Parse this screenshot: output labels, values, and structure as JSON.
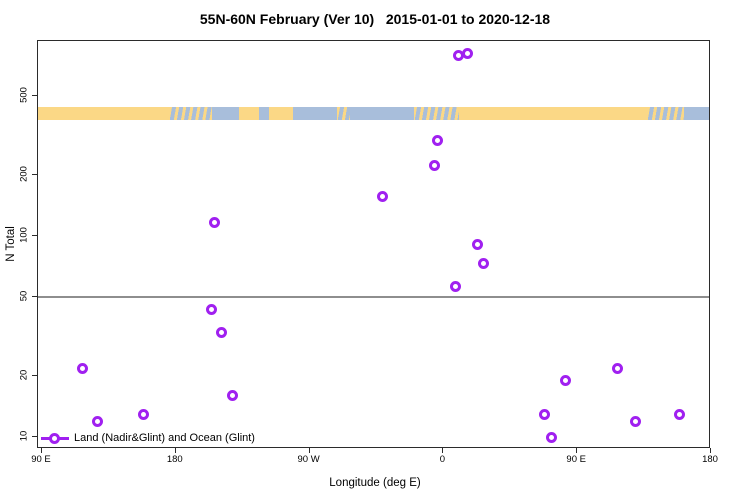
{
  "title": "55N-60N February (Ver 10)   2015-01-01 to 2020-12-18",
  "colors": {
    "point": "#a020f0",
    "land": "#fbd886",
    "ocean": "#a8bedb",
    "reference_line": "#8e8e8e",
    "axis": "#2b2b2b"
  },
  "legend": {
    "label": "Land (Nadir&Glint) and Ocean (Glint)"
  },
  "reference_line": {
    "value": 50
  },
  "map_band": {
    "segments": [
      {
        "start": 0.0,
        "end": 0.195,
        "type": "land"
      },
      {
        "start": 0.195,
        "end": 0.26,
        "type": "mixed"
      },
      {
        "start": 0.26,
        "end": 0.3,
        "type": "ocean"
      },
      {
        "start": 0.3,
        "end": 0.33,
        "type": "land"
      },
      {
        "start": 0.33,
        "end": 0.345,
        "type": "ocean"
      },
      {
        "start": 0.345,
        "end": 0.38,
        "type": "land"
      },
      {
        "start": 0.38,
        "end": 0.445,
        "type": "ocean"
      },
      {
        "start": 0.445,
        "end": 0.465,
        "type": "mixed"
      },
      {
        "start": 0.465,
        "end": 0.56,
        "type": "ocean"
      },
      {
        "start": 0.56,
        "end": 0.627,
        "type": "mixed"
      },
      {
        "start": 0.627,
        "end": 0.908,
        "type": "land"
      },
      {
        "start": 0.908,
        "end": 0.963,
        "type": "mixed"
      },
      {
        "start": 0.963,
        "end": 1.0,
        "type": "ocean"
      }
    ]
  },
  "chart_data": {
    "type": "scatter",
    "title": "55N-60N February (Ver 10)   2015-01-01 to 2020-12-18",
    "xlabel": "Longitude (deg E)",
    "ylabel": "N Total",
    "y_scale": "log",
    "ylim": [
      8.7,
      935
    ],
    "x_axis_wrapped_range_deg": [
      90,
      540
    ],
    "x_ticks": [
      {
        "lon": 90,
        "label": "90 E"
      },
      {
        "lon": 180,
        "label": "180"
      },
      {
        "lon": 270,
        "label": "90 W"
      },
      {
        "lon": 360,
        "label": "0"
      },
      {
        "lon": 450,
        "label": "90 E"
      },
      {
        "lon": 540,
        "label": "180"
      }
    ],
    "y_ticks": [
      {
        "value": 10,
        "label": "10"
      },
      {
        "value": 20,
        "label": "20"
      },
      {
        "value": 50,
        "label": "50"
      },
      {
        "value": 100,
        "label": "100"
      },
      {
        "value": 200,
        "label": "200"
      },
      {
        "value": 500,
        "label": "500"
      }
    ],
    "series_name": "Land (Nadir&Glint) and Ocean (Glint)",
    "points": [
      {
        "lon": 370.0,
        "n": 790
      },
      {
        "lon": 376.5,
        "n": 805
      },
      {
        "lon": 356.0,
        "n": 297
      },
      {
        "lon": 354.0,
        "n": 223
      },
      {
        "lon": 319.0,
        "n": 158
      },
      {
        "lon": 206.0,
        "n": 117
      },
      {
        "lon": 383.0,
        "n": 91
      },
      {
        "lon": 387.0,
        "n": 73
      },
      {
        "lon": 368.0,
        "n": 56
      },
      {
        "lon": 204.0,
        "n": 43
      },
      {
        "lon": 211.0,
        "n": 33
      },
      {
        "lon": 117.0,
        "n": 22
      },
      {
        "lon": 218.0,
        "n": 16
      },
      {
        "lon": 127.0,
        "n": 12
      },
      {
        "lon": 158.0,
        "n": 13
      },
      {
        "lon": 477.0,
        "n": 22
      },
      {
        "lon": 442.0,
        "n": 19
      },
      {
        "lon": 428.0,
        "n": 13
      },
      {
        "lon": 489.0,
        "n": 12
      },
      {
        "lon": 519.0,
        "n": 13
      },
      {
        "lon": 432.4,
        "n": 10
      }
    ]
  }
}
